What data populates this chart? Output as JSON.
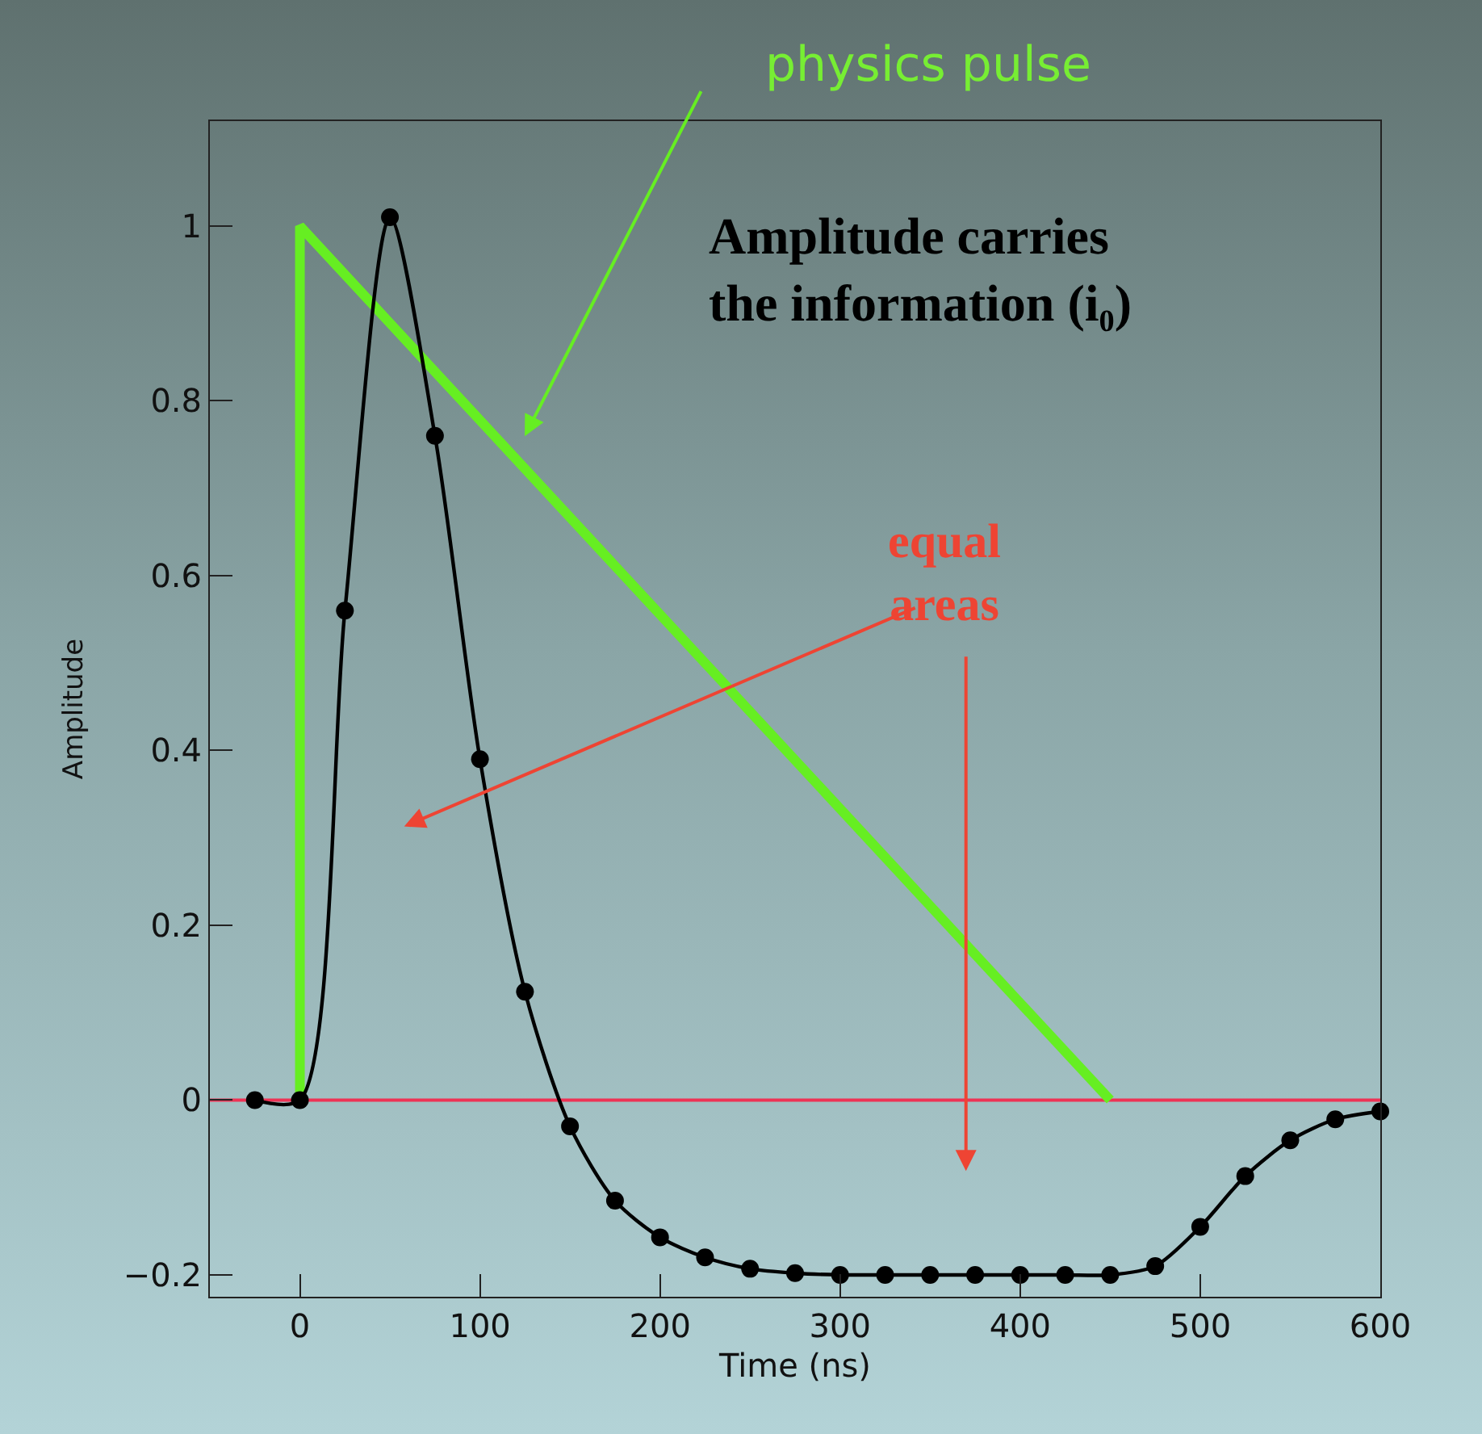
{
  "chart_data": {
    "type": "line",
    "xlabel": "Time (ns)",
    "ylabel": "Amplitude",
    "xlim": [
      -50,
      600
    ],
    "xticks": [
      0,
      100,
      200,
      300,
      400,
      500,
      600
    ],
    "ylim": [
      -0.225,
      1.12
    ],
    "yticks": [
      {
        "value": -0.2,
        "label": "−0.2"
      },
      0,
      0.2,
      0.4,
      0.6,
      0.8,
      1
    ],
    "grid": false,
    "series": [
      {
        "color": "#000000",
        "marker": "circle",
        "x": [
          -25,
          0,
          25,
          50,
          75,
          100,
          125,
          150,
          175,
          200,
          225,
          250,
          275,
          300,
          325,
          350,
          375,
          400,
          425,
          450,
          475,
          500,
          525,
          550,
          575,
          600
        ],
        "values": [
          0,
          0,
          0.56,
          1.01,
          0.76,
          0.39,
          0.124,
          -0.03,
          -0.115,
          -0.157,
          -0.18,
          -0.193,
          -0.198,
          -0.2,
          -0.2,
          -0.2,
          -0.2,
          -0.2,
          -0.2,
          -0.2,
          -0.19,
          -0.145,
          -0.087,
          -0.046,
          -0.022,
          -0.013
        ]
      },
      {
        "color": "#66ee22",
        "marker": "none",
        "x": [
          0,
          0,
          450
        ],
        "values": [
          0,
          1,
          0
        ]
      }
    ],
    "ref_lines": [
      {
        "axis": "y",
        "value": 0,
        "color": "#ee3355"
      }
    ],
    "annotations": [
      "physics pulse",
      "equal areas",
      "Amplitude carries the information (i₀)"
    ]
  }
}
